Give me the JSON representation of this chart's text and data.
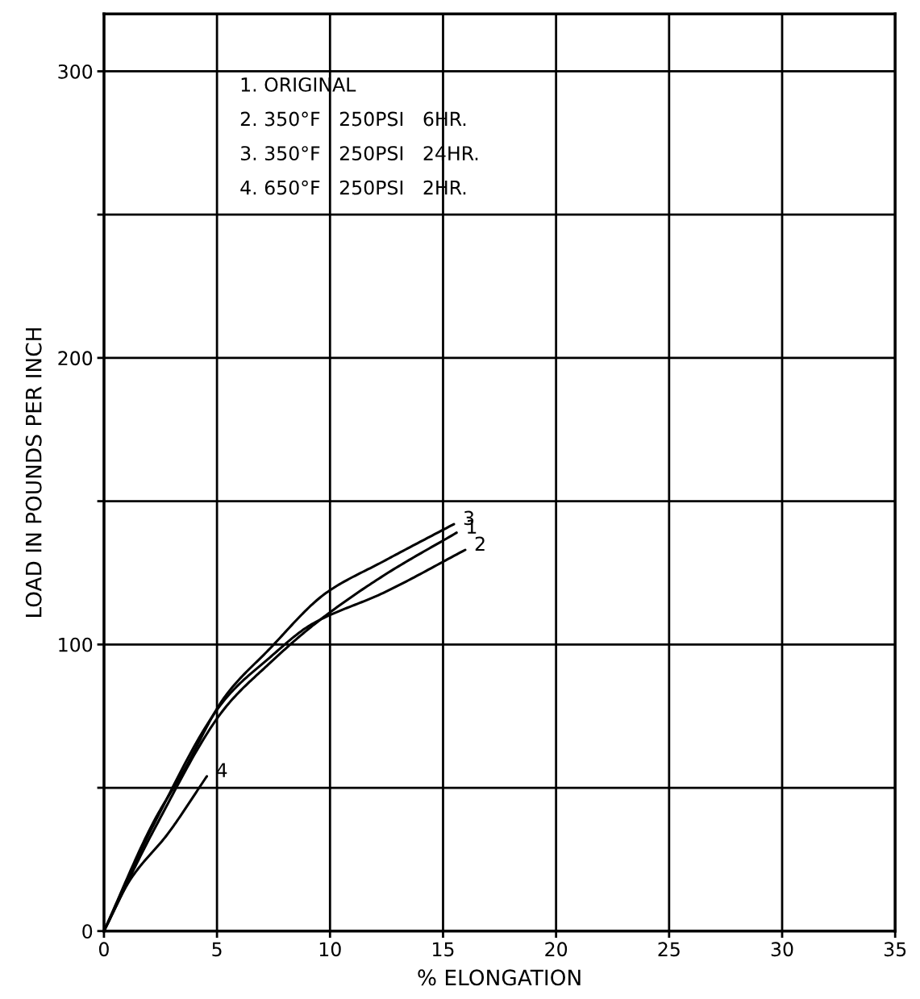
{
  "chart_data": {
    "type": "line",
    "xlabel": "% ELONGATION",
    "ylabel": "LOAD IN POUNDS PER INCH",
    "xlim": [
      0,
      35
    ],
    "ylim": [
      0,
      320
    ],
    "xticks": [
      0,
      5,
      10,
      15,
      20,
      25,
      30,
      35
    ],
    "yticks": [
      0,
      {
        "value": 50,
        "label": null
      },
      100,
      {
        "value": 150,
        "label": null
      },
      200,
      {
        "value": 250,
        "label": null
      },
      300
    ],
    "grid": true,
    "marker": "none",
    "line_style": "solid",
    "annotations": [
      "1. ORIGINAL",
      "2. 350°F   250PSI   6HR.",
      "3. 350°F   250PSI   24HR.",
      "4. 650°F   250PSI   2HR."
    ],
    "series": [
      {
        "name": "1",
        "color": "#000000",
        "x": [
          0,
          2.19,
          5.37,
          7.27,
          9.3,
          12.36,
          15.6
        ],
        "values": [
          0,
          35,
          78,
          93,
          107,
          124,
          139
        ]
      },
      {
        "name": "2",
        "color": "#000000",
        "x": [
          0,
          2.19,
          5.37,
          7.27,
          9.18,
          12.36,
          15.98
        ],
        "values": [
          0,
          37,
          81,
          95,
          107,
          118,
          133
        ]
      },
      {
        "name": "3",
        "color": "#000000",
        "x": [
          0,
          2.19,
          3.46,
          5.37,
          7.27,
          9.83,
          12.36,
          15.48
        ],
        "values": [
          0,
          38,
          55,
          82,
          98,
          118,
          129,
          142
        ]
      },
      {
        "name": "4",
        "color": "#000000",
        "x": [
          0,
          1.17,
          2.83,
          4.55
        ],
        "values": [
          0,
          18,
          34,
          54
        ]
      }
    ]
  }
}
